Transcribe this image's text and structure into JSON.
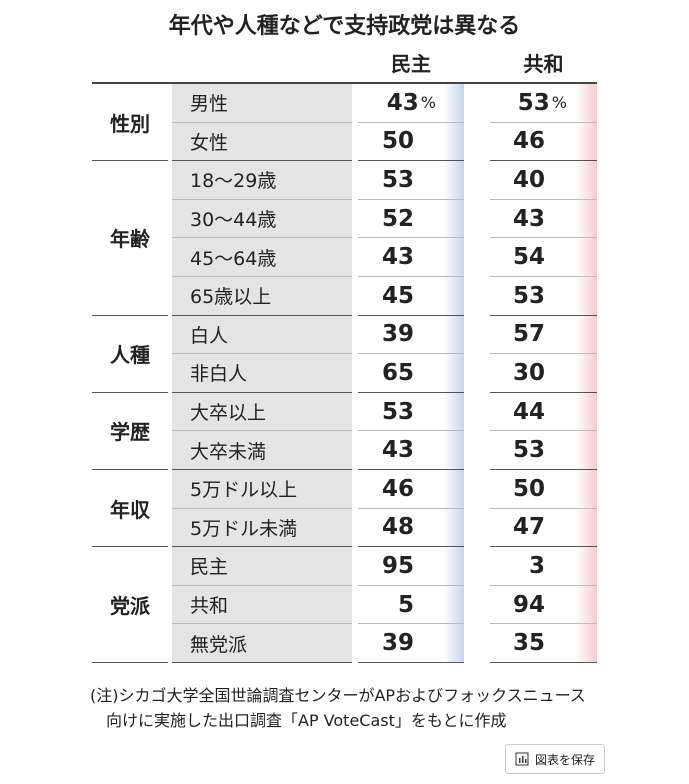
{
  "title": "年代や人種などで支持政党は異なる",
  "columns": [
    "民主",
    "共和"
  ],
  "unit": "%",
  "groups": [
    {
      "name": "性別",
      "rows": [
        {
          "label": "男性",
          "values": [
            43,
            53
          ]
        },
        {
          "label": "女性",
          "values": [
            50,
            46
          ]
        }
      ]
    },
    {
      "name": "年齢",
      "rows": [
        {
          "label": "18～29歳",
          "values": [
            53,
            40
          ]
        },
        {
          "label": "30～44歳",
          "values": [
            52,
            43
          ]
        },
        {
          "label": "45～64歳",
          "values": [
            43,
            54
          ]
        },
        {
          "label": "65歳以上",
          "values": [
            45,
            53
          ]
        }
      ]
    },
    {
      "name": "人種",
      "rows": [
        {
          "label": "白人",
          "values": [
            39,
            57
          ]
        },
        {
          "label": "非白人",
          "values": [
            65,
            30
          ]
        }
      ]
    },
    {
      "name": "学歴",
      "rows": [
        {
          "label": "大卒以上",
          "values": [
            53,
            44
          ]
        },
        {
          "label": "大卒未満",
          "values": [
            43,
            53
          ]
        }
      ]
    },
    {
      "name": "年収",
      "rows": [
        {
          "label": "5万ドル以上",
          "values": [
            46,
            50
          ]
        },
        {
          "label": "5万ドル未満",
          "values": [
            48,
            47
          ]
        }
      ]
    },
    {
      "name": "党派",
      "rows": [
        {
          "label": "民主",
          "values": [
            95,
            3
          ]
        },
        {
          "label": "共和",
          "values": [
            5,
            94
          ]
        },
        {
          "label": "無党派",
          "values": [
            39,
            35
          ]
        }
      ]
    }
  ],
  "note": [
    "(注)シカゴ大学全国世論調査センターがAPおよびフォックスニュース",
    "向けに実施した出口調査「AP VoteCast」をもとに作成"
  ],
  "button": "図表を保存"
}
